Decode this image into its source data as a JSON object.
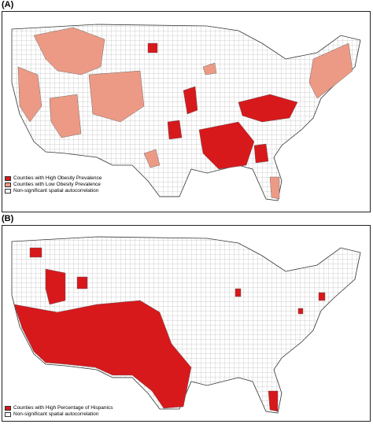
{
  "colors": {
    "high": "#d7191c",
    "low": "#ec9a85",
    "none": "#ffffff",
    "border": "#555555"
  },
  "panels": [
    {
      "label": "(A)",
      "legend": [
        {
          "text": "Counties with High Obesity Prevalence",
          "color": "#d7191c"
        },
        {
          "text": "Counties with Low Obesity Prevalence",
          "color": "#ec9a85"
        },
        {
          "text": "Non-significant spatial autocorrelation",
          "color": "#ffffff"
        }
      ]
    },
    {
      "label": "(B)",
      "legend": [
        {
          "text": "Counties with High Percentage of Hispanics",
          "color": "#d7191c"
        },
        {
          "text": "Non-significant spatial autocorrelation",
          "color": "#ffffff"
        }
      ]
    }
  ]
}
